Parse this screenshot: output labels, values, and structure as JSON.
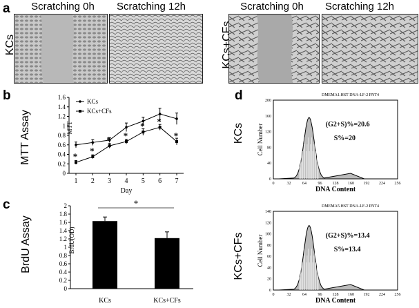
{
  "panel_a": {
    "label": "a",
    "headers": [
      "Scratching 0h",
      "Scratching 12h",
      "Scratching 0h",
      "Scratching 12h"
    ],
    "row_labels": [
      "KCs",
      "KCs+CFs"
    ]
  },
  "panel_b": {
    "label": "b",
    "ylabel": "MTT Assay",
    "ylabel_inner": "MTT",
    "xlabel": "Day",
    "legend": [
      "KCs",
      "KCs+CFs"
    ]
  },
  "panel_c": {
    "label": "c",
    "ylabel": "BrdU Assay",
    "ylabel_inner": "BrdU(OD)",
    "sig": "*"
  },
  "panel_d": {
    "label": "d",
    "row_labels": [
      "KCs",
      "KCs+CFs"
    ],
    "headers": [
      "DMEMA1.HST DNA-LF-2  PNT4",
      "DMEMA5.HST DNA-LF-2  PNT4"
    ],
    "annotations": [
      [
        "(G2+S)%=20.6",
        "S%=20"
      ],
      [
        "(G2+S)%=13.4",
        "S%=13.4"
      ]
    ],
    "ylabel": "Cell Number",
    "xlabel": "DNA  Content"
  },
  "chart_data": [
    {
      "type": "line",
      "x": [
        1,
        2,
        3,
        4,
        5,
        6,
        7
      ],
      "series": [
        {
          "name": "KCs",
          "values": [
            0.6,
            0.65,
            0.7,
            0.97,
            1.1,
            1.25,
            1.15
          ],
          "errors": [
            0.06,
            0.06,
            0.05,
            0.09,
            0.08,
            0.12,
            0.12
          ]
        },
        {
          "name": "KCs+CFs",
          "values": [
            0.23,
            0.35,
            0.58,
            0.67,
            0.87,
            0.97,
            0.67
          ],
          "errors": [
            0.04,
            0.04,
            0.05,
            0.05,
            0.07,
            0.06,
            0.07
          ]
        }
      ],
      "significance_marks": [
        "*",
        "*",
        "*",
        "*",
        "*",
        "*",
        "*"
      ],
      "xlabel": "Day",
      "ylabel": "MTT",
      "ylim": [
        0,
        1.6
      ],
      "yticks": [
        "0",
        "0.2",
        "0.4",
        "0.6",
        "0.8",
        "1",
        "1.2",
        "1.4",
        "1.6"
      ],
      "legend": "top-left"
    },
    {
      "type": "bar",
      "categories": [
        "KCs",
        "KCs+CFs"
      ],
      "values": [
        1.63,
        1.22
      ],
      "errors": [
        0.1,
        0.15
      ],
      "ylabel": "BrdU(OD)",
      "ylim": [
        0,
        2
      ],
      "yticks": [
        "0",
        "0.2",
        "0.4",
        "0.6",
        "0.8",
        "1",
        "1.2",
        "1.4",
        "1.6",
        "1.8",
        "2"
      ]
    },
    {
      "type": "area",
      "x_ticks": [
        "0",
        "32",
        "64",
        "96",
        "128",
        "160",
        "192",
        "224",
        "256"
      ],
      "y_ticks": [
        "0",
        "40",
        "80",
        "120",
        "160",
        "200"
      ],
      "xlabel": "DNA  Content",
      "ylabel": "Cell Number",
      "ylim": [
        0,
        200
      ]
    },
    {
      "type": "area",
      "x_ticks": [
        "0",
        "32",
        "64",
        "96",
        "128",
        "160",
        "192",
        "224",
        "256"
      ],
      "y_ticks": [
        "0",
        "20",
        "40",
        "60",
        "80",
        "100",
        "120",
        "140"
      ],
      "xlabel": "DNA  Content",
      "ylabel": "Cell Number",
      "ylim": [
        0,
        140
      ]
    }
  ]
}
